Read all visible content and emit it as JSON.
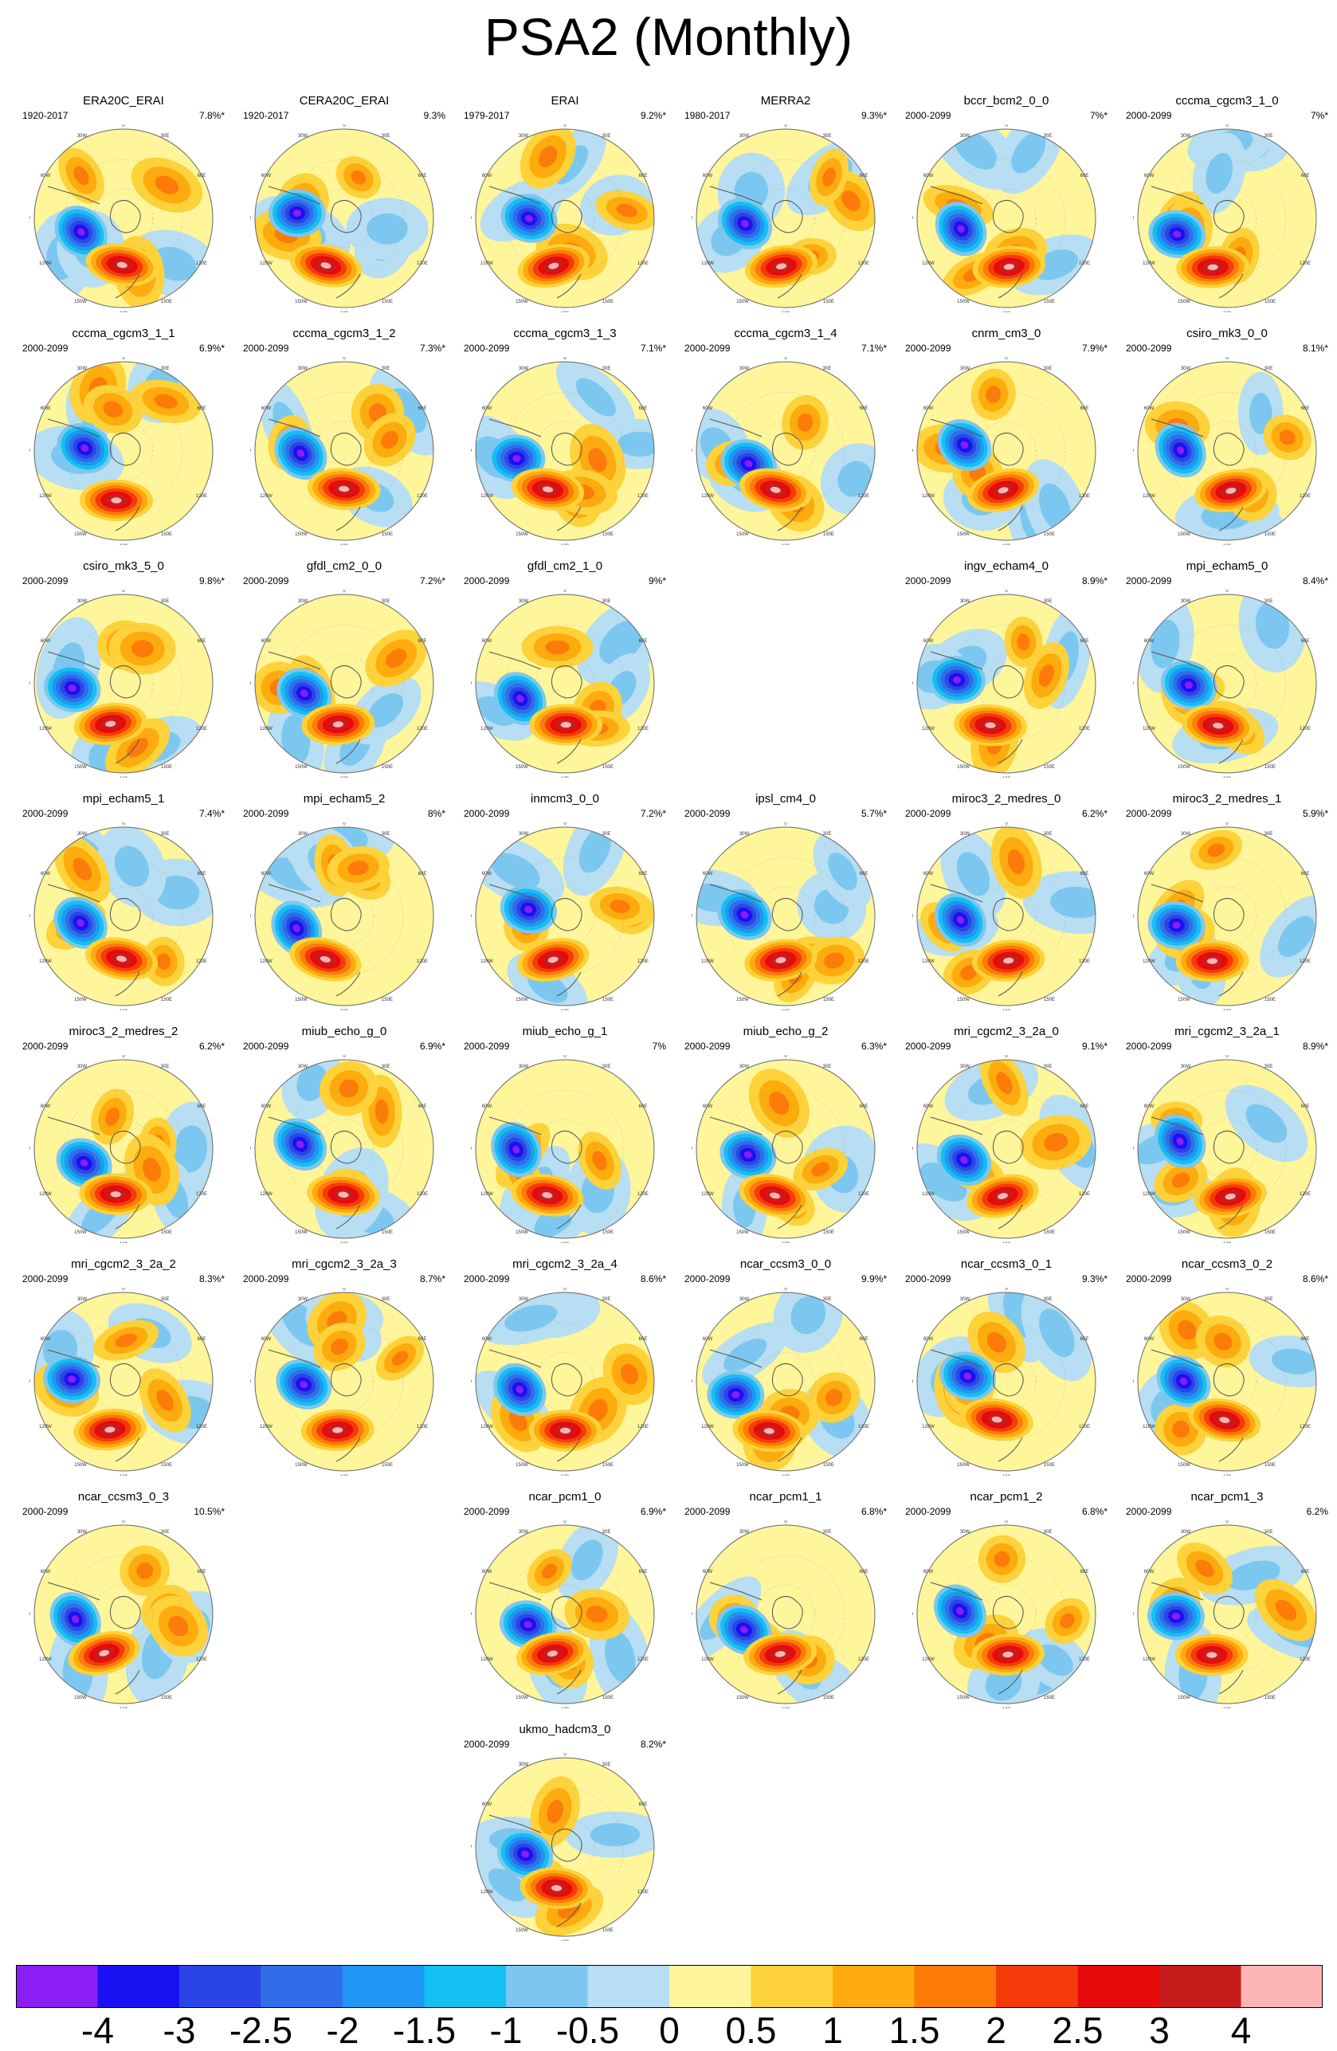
{
  "title": "PSA2 (Monthly)",
  "chart_data": {
    "type": "polar_contour_panels",
    "title": "PSA2 (Monthly)",
    "colorbar": {
      "labels": [
        "-4",
        "-3",
        "-2.5",
        "-2",
        "-1.5",
        "-1",
        "-0.5",
        "0",
        "0.5",
        "1",
        "1.5",
        "2",
        "2.5",
        "3",
        "4"
      ],
      "colors": [
        "#8a1ef5",
        "#1a11f2",
        "#2a45e6",
        "#2f6ee8",
        "#1e96f3",
        "#12c0f2",
        "#7cc7ef",
        "#b7def2",
        "#fff59a",
        "#fdd23a",
        "#fdab0d",
        "#fd7b08",
        "#f53b0a",
        "#e60b0b",
        "#c81c1c",
        "#fcb4b4"
      ]
    },
    "map_labels": {
      "lon_0": "0",
      "lon_30w": "30W",
      "lon_60w": "60W",
      "lon_90w": "90W",
      "lon_120w": "120W",
      "lon_150w": "150W",
      "lon_180": "180",
      "lon_30e": "30E",
      "lon_60e": "60E",
      "lon_90e": "90E",
      "lon_120e": "120E",
      "lon_150e": "150E"
    },
    "panels": [
      {
        "name": "ERA20C_ERAI",
        "period": "1920-2017",
        "pct": "7.8%*"
      },
      {
        "name": "CERA20C_ERAI",
        "period": "1920-2017",
        "pct": "9.3%"
      },
      {
        "name": "ERAI",
        "period": "1979-2017",
        "pct": "9.2%*"
      },
      {
        "name": "MERRA2",
        "period": "1980-2017",
        "pct": "9.3%*"
      },
      {
        "name": "bccr_bcm2_0_0",
        "period": "2000-2099",
        "pct": "7%*"
      },
      {
        "name": "cccma_cgcm3_1_0",
        "period": "2000-2099",
        "pct": "7%*"
      },
      {
        "name": "cccma_cgcm3_1_1",
        "period": "2000-2099",
        "pct": "6.9%*"
      },
      {
        "name": "cccma_cgcm3_1_2",
        "period": "2000-2099",
        "pct": "7.3%*"
      },
      {
        "name": "cccma_cgcm3_1_3",
        "period": "2000-2099",
        "pct": "7.1%*"
      },
      {
        "name": "cccma_cgcm3_1_4",
        "period": "2000-2099",
        "pct": "7.1%*"
      },
      {
        "name": "cnrm_cm3_0",
        "period": "2000-2099",
        "pct": "7.9%*"
      },
      {
        "name": "csiro_mk3_0_0",
        "period": "2000-2099",
        "pct": "8.1%*"
      },
      {
        "name": "csiro_mk3_5_0",
        "period": "2000-2099",
        "pct": "9.8%*"
      },
      {
        "name": "gfdl_cm2_0_0",
        "period": "2000-2099",
        "pct": "7.2%*"
      },
      {
        "name": "gfdl_cm2_1_0",
        "period": "2000-2099",
        "pct": "9%*"
      },
      {
        "name": "ingv_echam4_0",
        "period": "2000-2099",
        "pct": "8.9%*"
      },
      {
        "name": "mpi_echam5_0",
        "period": "2000-2099",
        "pct": "8.4%*"
      },
      {
        "name": "mpi_echam5_1",
        "period": "2000-2099",
        "pct": "7.4%*"
      },
      {
        "name": "mpi_echam5_2",
        "period": "2000-2099",
        "pct": "8%*"
      },
      {
        "name": "inmcm3_0_0",
        "period": "2000-2099",
        "pct": "7.2%*"
      },
      {
        "name": "ipsl_cm4_0",
        "period": "2000-2099",
        "pct": "5.7%*"
      },
      {
        "name": "miroc3_2_medres_0",
        "period": "2000-2099",
        "pct": "6.2%*"
      },
      {
        "name": "miroc3_2_medres_1",
        "period": "2000-2099",
        "pct": "5.9%*"
      },
      {
        "name": "miroc3_2_medres_2",
        "period": "2000-2099",
        "pct": "6.2%*"
      },
      {
        "name": "miub_echo_g_0",
        "period": "2000-2099",
        "pct": "6.9%*"
      },
      {
        "name": "miub_echo_g_1",
        "period": "2000-2099",
        "pct": "7%"
      },
      {
        "name": "miub_echo_g_2",
        "period": "2000-2099",
        "pct": "6.3%*"
      },
      {
        "name": "mri_cgcm2_3_2a_0",
        "period": "2000-2099",
        "pct": "9.1%*"
      },
      {
        "name": "mri_cgcm2_3_2a_1",
        "period": "2000-2099",
        "pct": "8.9%*"
      },
      {
        "name": "mri_cgcm2_3_2a_2",
        "period": "2000-2099",
        "pct": "8.3%*"
      },
      {
        "name": "mri_cgcm2_3_2a_3",
        "period": "2000-2099",
        "pct": "8.7%*"
      },
      {
        "name": "mri_cgcm2_3_2a_4",
        "period": "2000-2099",
        "pct": "8.6%*"
      },
      {
        "name": "ncar_ccsm3_0_0",
        "period": "2000-2099",
        "pct": "9.9%*"
      },
      {
        "name": "ncar_ccsm3_0_1",
        "period": "2000-2099",
        "pct": "9.3%*"
      },
      {
        "name": "ncar_ccsm3_0_2",
        "period": "2000-2099",
        "pct": "8.6%*"
      },
      {
        "name": "ncar_ccsm3_0_3",
        "period": "2000-2099",
        "pct": "10.5%*"
      },
      {
        "name": "ncar_pcm1_0",
        "period": "2000-2099",
        "pct": "6.9%*"
      },
      {
        "name": "ncar_pcm1_1",
        "period": "2000-2099",
        "pct": "6.8%*"
      },
      {
        "name": "ncar_pcm1_2",
        "period": "2000-2099",
        "pct": "6.8%*"
      },
      {
        "name": "ncar_pcm1_3",
        "period": "2000-2099",
        "pct": "6.2%"
      },
      {
        "name": "ukmo_hadcm3_0",
        "period": "2000-2099",
        "pct": "8.2%*"
      }
    ]
  }
}
